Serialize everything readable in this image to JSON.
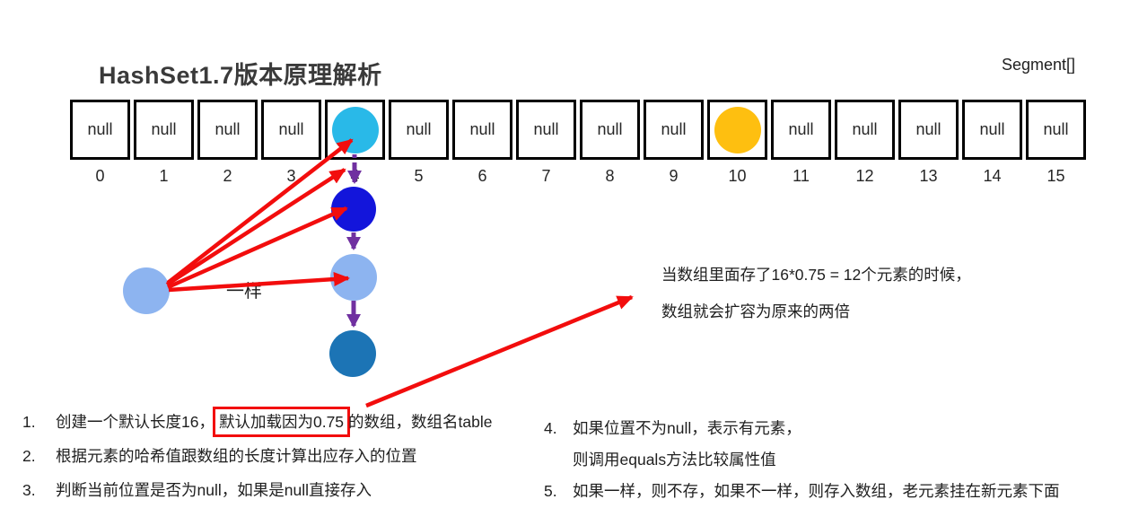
{
  "colors": {
    "red": "#f20d0d",
    "purple": "#7030a0",
    "cyan": "#29b9e8",
    "yellow": "#febf10",
    "light_blue": "#8db4f0",
    "royal_blue": "#1315db",
    "steel_blue": "#1c74b5",
    "text": "#262626"
  },
  "header": {
    "title": "HashSet1.7版本原理解析",
    "corner_label": "Segment[]"
  },
  "array": {
    "cells": [
      {
        "index": "0",
        "value": "null"
      },
      {
        "index": "1",
        "value": "null"
      },
      {
        "index": "2",
        "value": "null"
      },
      {
        "index": "3",
        "value": "null"
      },
      {
        "index": "4",
        "value": "",
        "circle": "cyan"
      },
      {
        "index": "5",
        "value": "null"
      },
      {
        "index": "6",
        "value": "null"
      },
      {
        "index": "7",
        "value": "null"
      },
      {
        "index": "8",
        "value": "null"
      },
      {
        "index": "9",
        "value": "null"
      },
      {
        "index": "10",
        "value": "",
        "circle": "yellow"
      },
      {
        "index": "11",
        "value": "null"
      },
      {
        "index": "12",
        "value": "null"
      },
      {
        "index": "13",
        "value": "null"
      },
      {
        "index": "14",
        "value": "null"
      },
      {
        "index": "15",
        "value": "null"
      }
    ]
  },
  "labels": {
    "same": "一样"
  },
  "expansion_note": {
    "line1": "当数组里面存了16*0.75 = 12个元素的时候，",
    "line2": "数组就会扩容为原来的两倍"
  },
  "notes_left": {
    "items": [
      {
        "num": "1.",
        "prefix": "创建一个默认长度16，",
        "boxed": "默认加载因为0.75",
        "suffix": "的数组，数组名table"
      },
      {
        "num": "2.",
        "text": "根据元素的哈希值跟数组的长度计算出应存入的位置"
      },
      {
        "num": "3.",
        "text": "判断当前位置是否为null，如果是null直接存入"
      }
    ]
  },
  "notes_right": {
    "items": [
      {
        "num": "4.",
        "lines": [
          "如果位置不为null，表示有元素，",
          "则调用equals方法比较属性值"
        ]
      },
      {
        "num": "5.",
        "lines": [
          "如果一样，则不存，如果不一样，则存入数组，老元素挂在新元素下面"
        ]
      }
    ]
  }
}
